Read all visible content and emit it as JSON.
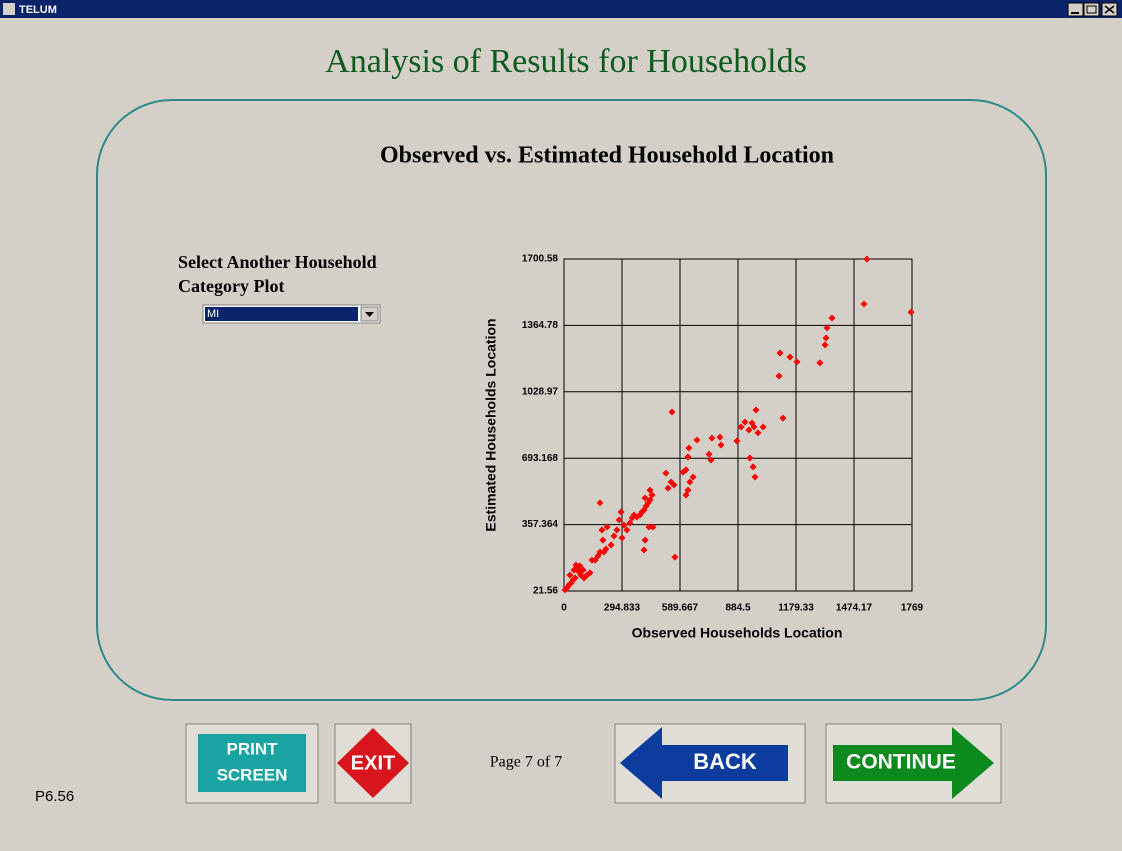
{
  "window": {
    "title": "TELUM"
  },
  "page": {
    "title": "Analysis of Results for Households",
    "indicator": "Page 7 of 7",
    "code": "P6.56"
  },
  "selector": {
    "label_lines": [
      "Select Another Household",
      "Category Plot"
    ],
    "value": "MI"
  },
  "buttons": {
    "print": [
      "PRINT",
      "SCREEN"
    ],
    "exit": "EXIT",
    "back": "BACK",
    "continue": "CONTINUE"
  },
  "chart_data": {
    "type": "scatter",
    "title": "Observed vs. Estimated Household Location",
    "x_label": "Observed Households Location",
    "y_label": "Estimated Households Location",
    "color": "#ff0000",
    "marker": "diamond",
    "grid": true,
    "xlim": [
      0,
      1769
    ],
    "ylim": [
      21.56,
      1700.58
    ],
    "xticks": [
      0,
      294.833,
      589.667,
      884.5,
      1179.33,
      1474.17,
      1769
    ],
    "yticks": [
      21.56,
      357.364,
      693.168,
      1028.97,
      1364.78,
      1700.58
    ],
    "x": [
      5,
      15,
      25,
      36,
      46,
      56,
      30,
      51,
      66,
      76,
      86,
      61,
      81,
      102,
      97,
      117,
      132,
      142,
      158,
      173,
      183,
      203,
      213,
      198,
      193,
      183,
      219,
      239,
      254,
      269,
      280,
      290,
      305,
      320,
      295,
      335,
      346,
      356,
      371,
      386,
      396,
      407,
      417,
      427,
      437,
      447,
      437,
      412,
      432,
      412,
      407,
      452,
      564,
      549,
      518,
      529,
      544,
      559,
      605,
      620,
      630,
      620,
      630,
      640,
      656,
      635,
      676,
      737,
      747,
      752,
      793,
      798,
      879,
      900,
      920,
      940,
      956,
      966,
      976,
      986,
      1012,
      945,
      961,
      971,
      1113,
      1098,
      1093,
      1149,
      1184,
      1301,
      1327,
      1332,
      1337,
      1362,
      1525,
      1540,
      1764
    ],
    "y": [
      27,
      37,
      52,
      62,
      77,
      87,
      102,
      128,
      138,
      118,
      102,
      153,
      148,
      87,
      128,
      102,
      113,
      178,
      178,
      199,
      219,
      219,
      234,
      279,
      330,
      467,
      345,
      254,
      300,
      330,
      381,
      421,
      355,
      330,
      290,
      365,
      391,
      406,
      396,
      406,
      421,
      431,
      451,
      467,
      482,
      507,
      532,
      492,
      345,
      279,
      229,
      345,
      193,
      927,
      618,
      542,
      573,
      558,
      623,
      634,
      699,
      507,
      532,
      573,
      598,
      745,
      785,
      714,
      684,
      795,
      800,
      760,
      780,
      851,
      876,
      836,
      871,
      851,
      937,
      821,
      851,
      694,
      649,
      598,
      896,
      1225,
      1109,
      1205,
      1180,
      1175,
      1266,
      1301,
      1352,
      1402,
      1473,
      1700,
      1432
    ]
  }
}
